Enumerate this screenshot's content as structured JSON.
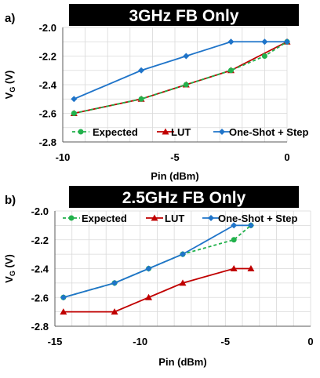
{
  "chart_data": [
    {
      "type": "line",
      "panel_label": "a)",
      "title": "3GHz FB Only",
      "xlabel": "Pin (dBm)",
      "ylabel": "V",
      "ylabel_sub": "G",
      "ylabel_unit": " (V)",
      "xlim": [
        -10,
        0
      ],
      "ylim": [
        -2.8,
        -2.0
      ],
      "xticks": [
        -10,
        -5,
        0
      ],
      "xtick_labels": [
        "-10",
        "-5",
        "0"
      ],
      "yticks": [
        -2.0,
        -2.2,
        -2.4,
        -2.6,
        -2.8
      ],
      "ytick_labels": [
        "-2.0",
        "-2.2",
        "-2.4",
        "-2.6",
        "-2.8"
      ],
      "grid": true,
      "legend_position": "bottom",
      "series": [
        {
          "name": "Expected",
          "style": "dashed",
          "marker": "circle",
          "color": "#22b14c",
          "x": [
            -9.5,
            -6.5,
            -4.5,
            -2.5,
            -1,
            0
          ],
          "y": [
            -2.6,
            -2.5,
            -2.4,
            -2.3,
            -2.2,
            -2.1
          ]
        },
        {
          "name": "LUT",
          "style": "solid",
          "marker": "triangle",
          "color": "#c00000",
          "x": [
            -9.5,
            -6.5,
            -4.5,
            -2.5,
            0
          ],
          "y": [
            -2.6,
            -2.5,
            -2.4,
            -2.3,
            -2.1
          ]
        },
        {
          "name": "One-Shot + Step",
          "style": "solid",
          "marker": "diamond",
          "color": "#1f74c9",
          "x": [
            -9.5,
            -6.5,
            -4.5,
            -2.5,
            -1,
            0
          ],
          "y": [
            -2.5,
            -2.3,
            -2.2,
            -2.1,
            -2.1,
            -2.1
          ]
        }
      ]
    },
    {
      "type": "line",
      "panel_label": "b)",
      "title": "2.5GHz FB Only",
      "xlabel": "Pin (dBm)",
      "ylabel": "V",
      "ylabel_sub": "G",
      "ylabel_unit": " (V)",
      "xlim": [
        -15,
        0
      ],
      "ylim": [
        -2.8,
        -2.0
      ],
      "xticks": [
        -15,
        -10,
        -5,
        0
      ],
      "xtick_labels": [
        "-15",
        "-10",
        "-5",
        "0"
      ],
      "yticks": [
        -2.0,
        -2.2,
        -2.4,
        -2.6,
        -2.8
      ],
      "ytick_labels": [
        "-2.0",
        "-2.2",
        "-2.4",
        "-2.6",
        "-2.8"
      ],
      "grid": true,
      "legend_position": "top",
      "series": [
        {
          "name": "Expected",
          "style": "dashed",
          "marker": "circle",
          "color": "#22b14c",
          "x": [
            -14.5,
            -11.5,
            -9.5,
            -7.5,
            -4.5,
            -3.5
          ],
          "y": [
            -2.6,
            -2.5,
            -2.4,
            -2.3,
            -2.2,
            -2.1
          ]
        },
        {
          "name": "LUT",
          "style": "solid",
          "marker": "triangle",
          "color": "#c00000",
          "x": [
            -14.5,
            -11.5,
            -9.5,
            -7.5,
            -4.5,
            -3.5
          ],
          "y": [
            -2.7,
            -2.7,
            -2.6,
            -2.5,
            -2.4,
            -2.4
          ]
        },
        {
          "name": "One-Shot + Step",
          "style": "solid",
          "marker": "diamond",
          "color": "#1f74c9",
          "x": [
            -14.5,
            -11.5,
            -9.5,
            -7.5,
            -4.5,
            -3.5
          ],
          "y": [
            -2.6,
            -2.5,
            -2.4,
            -2.3,
            -2.1,
            -2.1
          ]
        }
      ]
    }
  ]
}
